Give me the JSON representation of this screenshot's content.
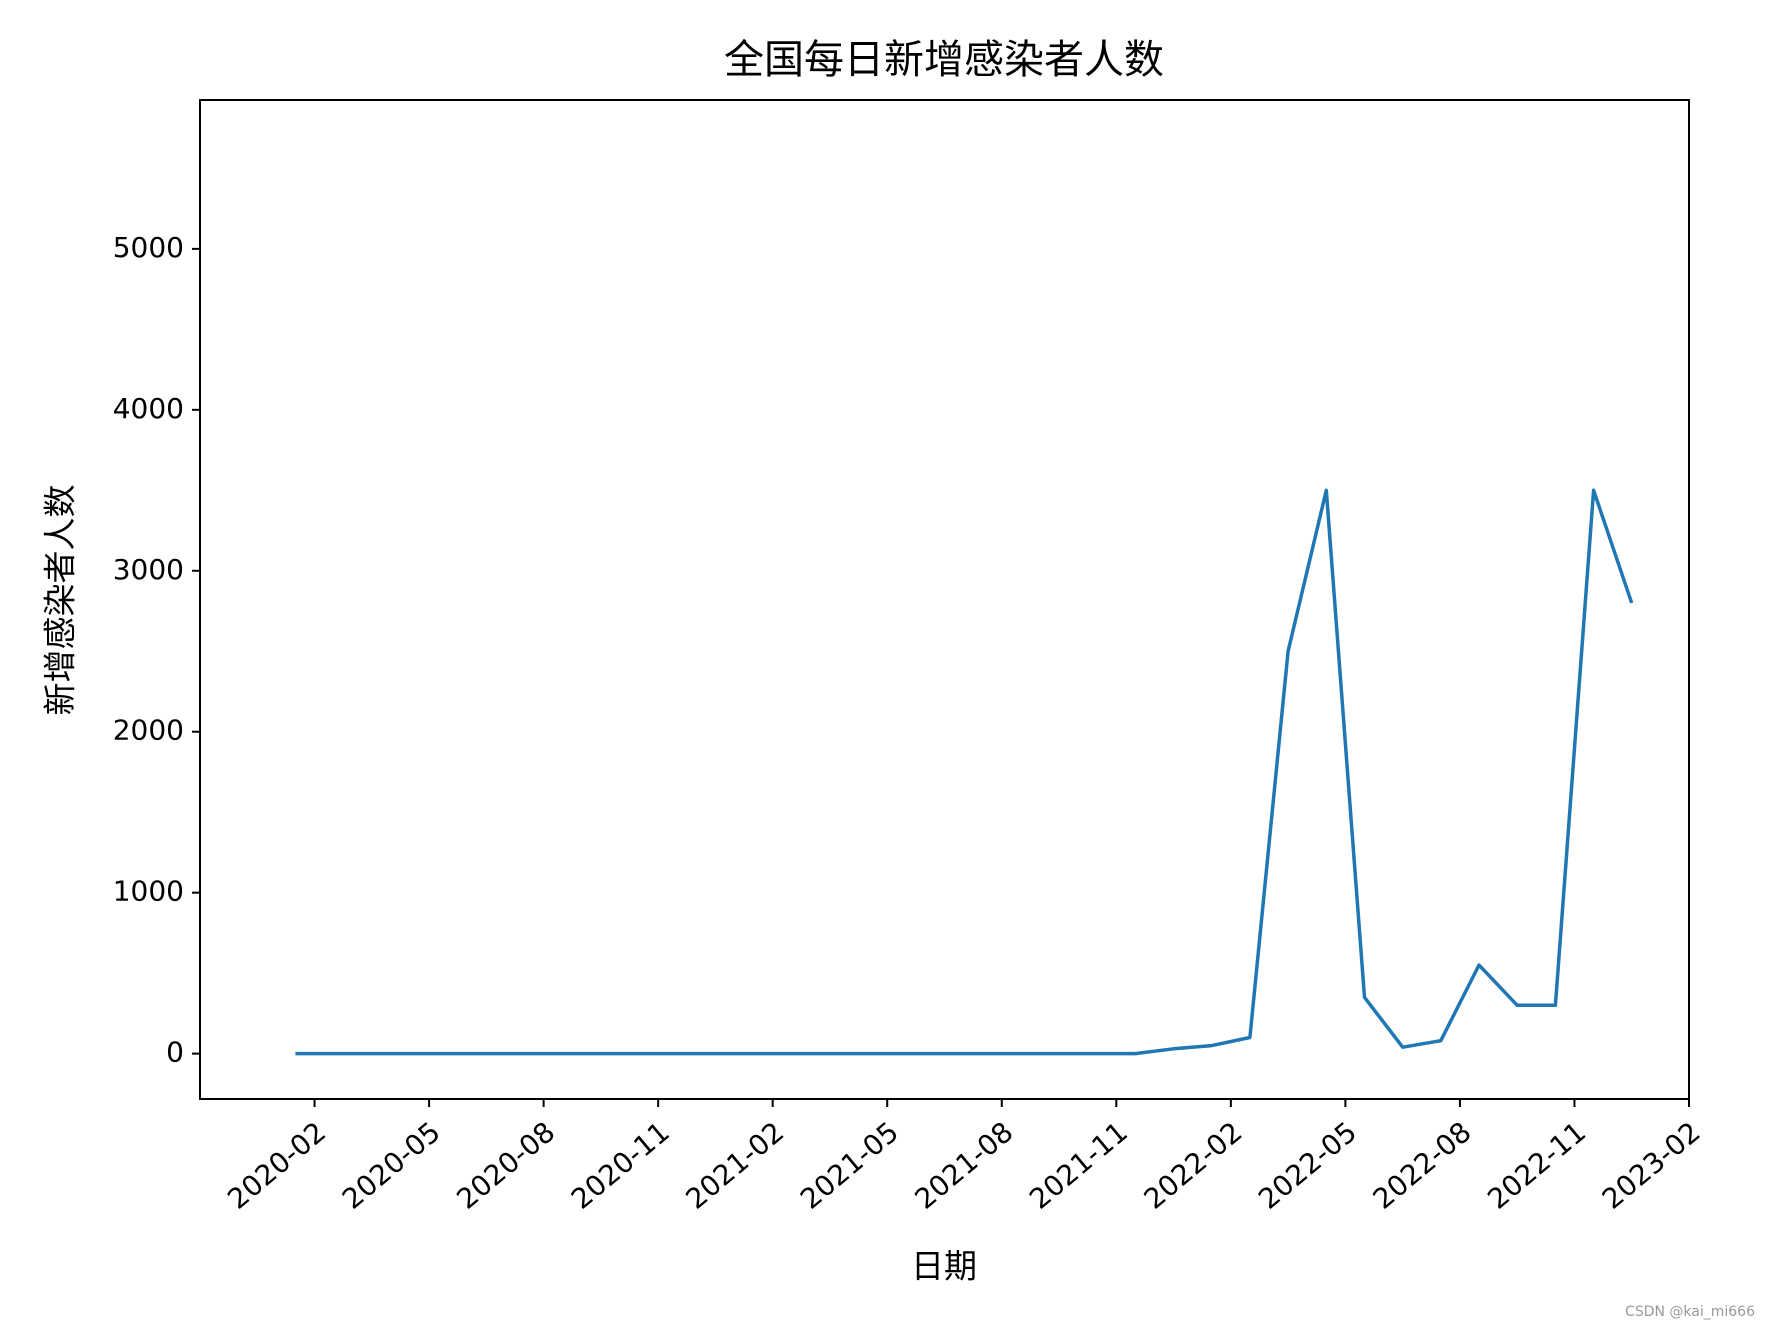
{
  "chart_data": {
    "type": "line",
    "title": "全国每日新增感染者人数",
    "x_label": "日期",
    "y_label": "新增感染者人数",
    "x": [
      "2020-01",
      "2020-02",
      "2020-03",
      "2020-04",
      "2020-05",
      "2020-06",
      "2020-07",
      "2020-08",
      "2020-09",
      "2020-10",
      "2020-11",
      "2020-12",
      "2021-01",
      "2021-02",
      "2021-03",
      "2021-04",
      "2021-05",
      "2021-06",
      "2021-07",
      "2021-08",
      "2021-09",
      "2021-10",
      "2021-11",
      "2021-12",
      "2022-01",
      "2022-02",
      "2022-03",
      "2022-04",
      "2022-05",
      "2022-06",
      "2022-07",
      "2022-08",
      "2022-09",
      "2022-10",
      "2022-11",
      "2022-12"
    ],
    "series": [
      {
        "name": "新增感染者人数",
        "color": "#1f77b4",
        "values": [
          0,
          0,
          0,
          0,
          0,
          0,
          0,
          0,
          0,
          0,
          0,
          0,
          0,
          0,
          0,
          0,
          0,
          0,
          0,
          0,
          0,
          0,
          0,
          30,
          50,
          100,
          2500,
          3500,
          350,
          40,
          80,
          550,
          300,
          300,
          3500,
          2800
        ]
      }
    ],
    "xlim": [
      "2019-11",
      "2023-02"
    ],
    "xticks": [
      "2020-02",
      "2020-05",
      "2020-08",
      "2020-11",
      "2021-02",
      "2021-05",
      "2021-08",
      "2021-11",
      "2022-02",
      "2022-05",
      "2022-08",
      "2022-11",
      "2023-02"
    ],
    "ylim": [
      -282,
      5925
    ],
    "yticks": [
      0,
      1000,
      2000,
      3000,
      4000,
      5000
    ],
    "watermark": "CSDN @kai_mi666"
  }
}
